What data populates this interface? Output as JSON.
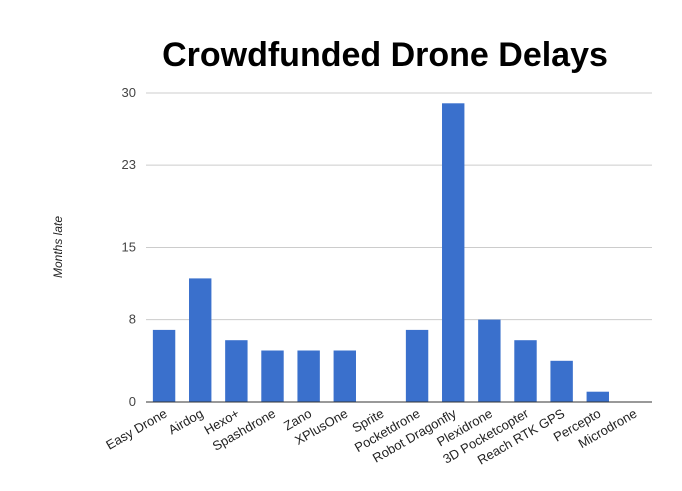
{
  "chart_data": {
    "type": "bar",
    "title": "Crowdfunded Drone Delays",
    "xlabel": "",
    "ylabel": "Months late",
    "ylim": [
      0,
      30
    ],
    "yticks": [
      "0",
      "8",
      "15",
      "23",
      "30"
    ],
    "grid": true,
    "bar_color": "#3a70cc",
    "categories": [
      "Easy Drone",
      "Airdog",
      "Hexo+",
      "Spashdrone",
      "Zano",
      "XPlusOne",
      "Sprite",
      "Pocketdrone",
      "Robot Dragonfly",
      "Plexidrone",
      "3D Pocketcopter",
      "Reach RTK GPS",
      "Percepto",
      "Microdrone"
    ],
    "values": [
      7,
      12,
      6,
      5,
      5,
      5,
      0,
      7,
      29,
      8,
      6,
      4,
      1,
      0
    ]
  }
}
